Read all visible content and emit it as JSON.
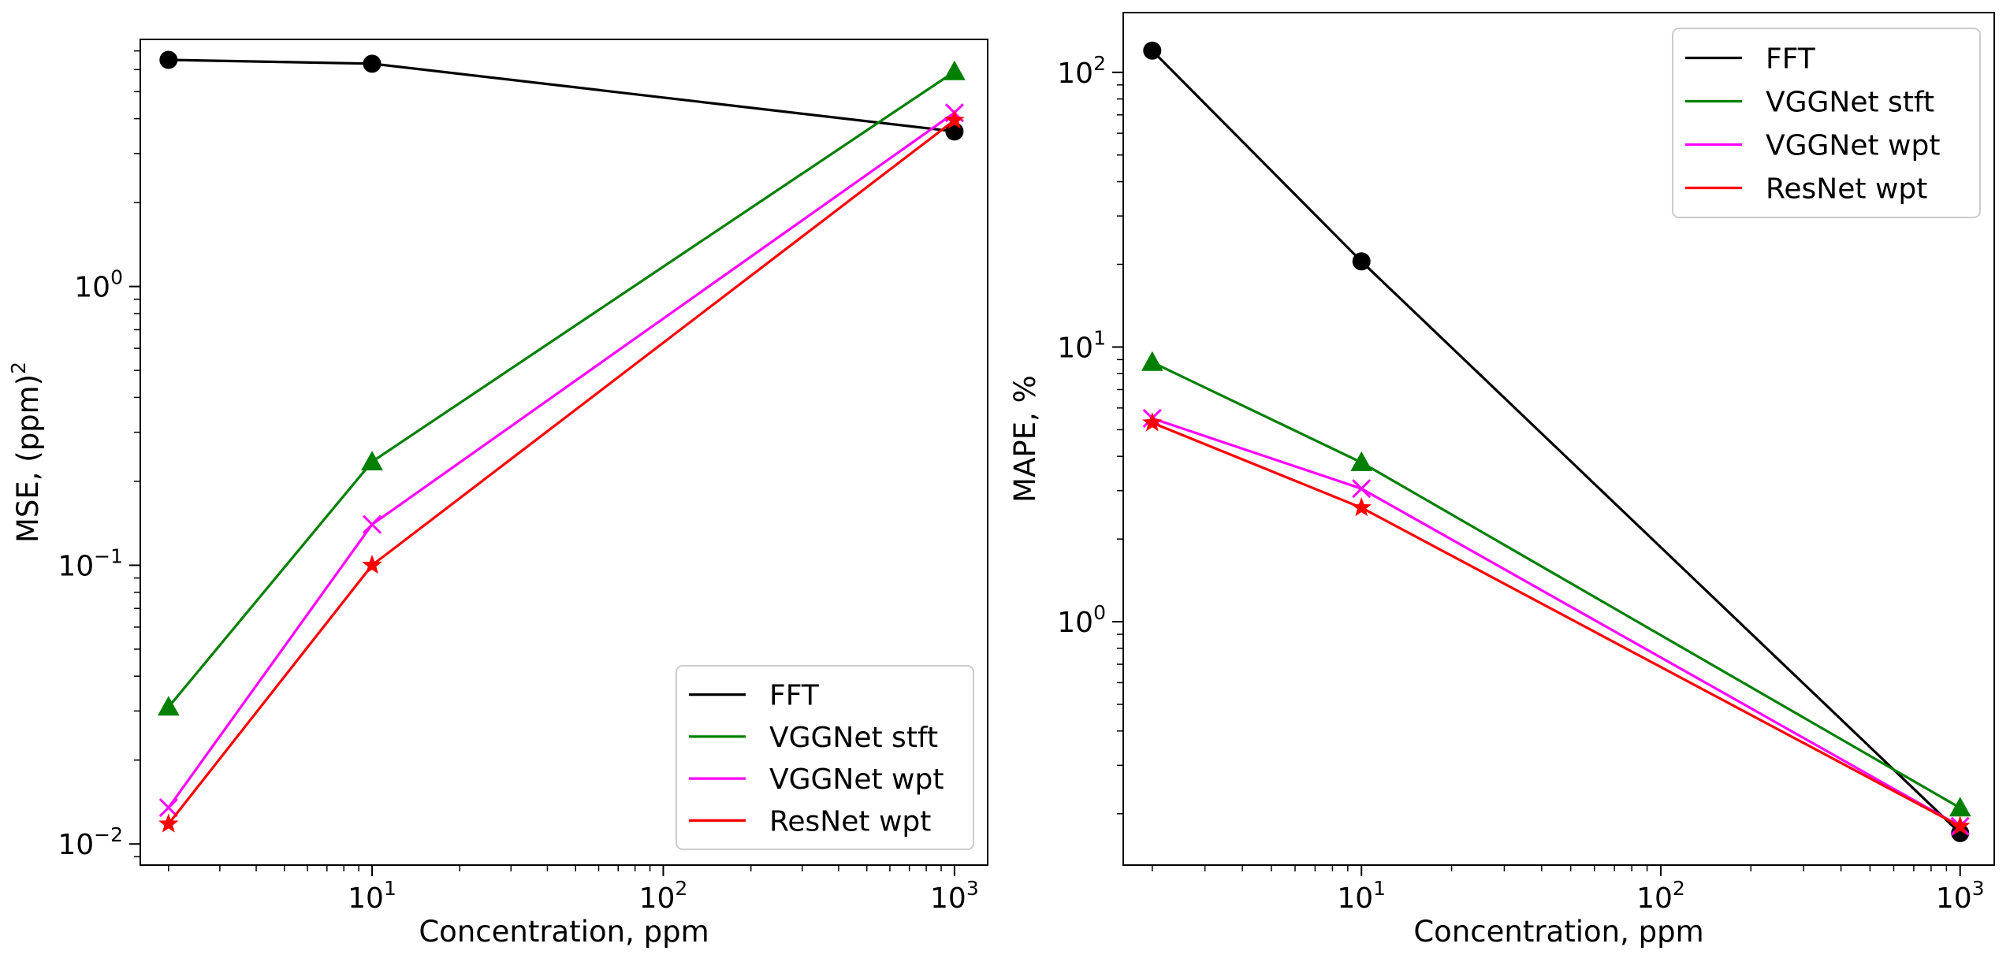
{
  "figure": {
    "description_free": true
  },
  "colors": {
    "FFT": "#000000",
    "VGGNet stft": "#008000",
    "VGGNet wpt": "#ff00ff",
    "ResNet wpt": "#ff0000"
  },
  "markers": {
    "FFT": "circle",
    "VGGNet stft": "triangle",
    "VGGNet wpt": "x",
    "ResNet wpt": "star"
  },
  "chart_data": [
    {
      "type": "line",
      "xscale": "log",
      "yscale": "log",
      "title": "",
      "xlabel": "Concentration, ppm",
      "ylabel": "MSE, (ppm)",
      "ylabel_sup": "2",
      "xlim": [
        1.6,
        1300
      ],
      "ylim": [
        0.0084,
        7.7
      ],
      "x": [
        2,
        10,
        1000
      ],
      "xticks": [
        {
          "value": 10,
          "base": "10",
          "exp": "1"
        },
        {
          "value": 100,
          "base": "10",
          "exp": "2"
        },
        {
          "value": 1000,
          "base": "10",
          "exp": "3"
        }
      ],
      "yticks": [
        {
          "value": 0.01,
          "base": "10",
          "exp": "−2"
        },
        {
          "value": 0.1,
          "base": "10",
          "exp": "−1"
        },
        {
          "value": 1,
          "base": "10",
          "exp": "0"
        }
      ],
      "legend_position": "lower-right",
      "series": [
        {
          "name": "FFT",
          "values": [
            6.5,
            6.3,
            3.6
          ]
        },
        {
          "name": "VGGNet stft",
          "values": [
            0.031,
            0.235,
            5.9
          ]
        },
        {
          "name": "VGGNet wpt",
          "values": [
            0.0135,
            0.14,
            4.2
          ]
        },
        {
          "name": "ResNet wpt",
          "values": [
            0.0118,
            0.1,
            3.95
          ]
        }
      ]
    },
    {
      "type": "line",
      "xscale": "log",
      "yscale": "log",
      "title": "",
      "xlabel": "Concentration, ppm",
      "ylabel": "MAPE, %",
      "ylabel_sup": "",
      "xlim": [
        1.6,
        1300
      ],
      "ylim": [
        0.13,
        165
      ],
      "x": [
        2,
        10,
        1000
      ],
      "xticks": [
        {
          "value": 10,
          "base": "10",
          "exp": "1"
        },
        {
          "value": 100,
          "base": "10",
          "exp": "2"
        },
        {
          "value": 1000,
          "base": "10",
          "exp": "3"
        }
      ],
      "yticks": [
        {
          "value": 1,
          "base": "10",
          "exp": "0"
        },
        {
          "value": 10,
          "base": "10",
          "exp": "1"
        },
        {
          "value": 100,
          "base": "10",
          "exp": "2"
        }
      ],
      "legend_position": "upper-right",
      "series": [
        {
          "name": "FFT",
          "values": [
            120,
            20.5,
            0.17
          ]
        },
        {
          "name": "VGGNet stft",
          "values": [
            8.8,
            3.8,
            0.21
          ]
        },
        {
          "name": "VGGNet wpt",
          "values": [
            5.5,
            3.05,
            0.18
          ]
        },
        {
          "name": "ResNet wpt",
          "values": [
            5.3,
            2.6,
            0.18
          ]
        }
      ]
    }
  ]
}
